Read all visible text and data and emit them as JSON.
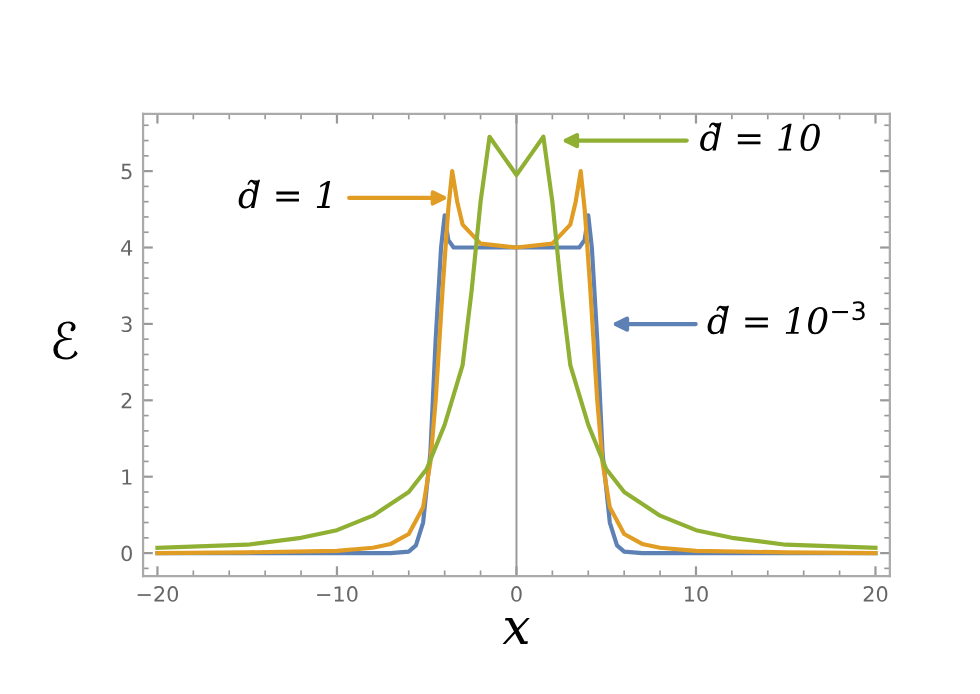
{
  "chart_data": {
    "type": "line",
    "xlabel": "x",
    "ylabel": "ℰ",
    "xlim": [
      -20.8,
      20.8
    ],
    "ylim": [
      -0.3,
      5.75
    ],
    "xticks": [
      {
        "value": -20,
        "label": "−20"
      },
      {
        "value": -10,
        "label": "−10"
      },
      0,
      10,
      20
    ],
    "yticks": [
      0,
      1,
      2,
      3,
      4,
      5
    ],
    "grid": false,
    "marker": "none",
    "line_style": "solid",
    "ref_lines": [
      {
        "axis": "x",
        "value": 0,
        "color": "#999999"
      }
    ],
    "series": [
      {
        "name": "d̃ = 10$^{−3}$",
        "color": "#5e81b5",
        "x": [
          -20,
          -7,
          -6,
          -5.6,
          -5.2,
          -4.8,
          -4.5,
          -4.2,
          -4.0,
          -3.8,
          -3.5,
          0,
          3.5,
          3.8,
          4.0,
          4.2,
          4.5,
          4.8,
          5.2,
          5.6,
          6,
          7,
          20
        ],
        "values": [
          0,
          0,
          0.02,
          0.1,
          0.4,
          1.3,
          2.8,
          4.0,
          4.42,
          4.1,
          4.0,
          4.0,
          4.0,
          4.1,
          4.42,
          4.0,
          2.8,
          1.3,
          0.4,
          0.1,
          0.02,
          0,
          0
        ]
      },
      {
        "name": "d̃ = 1",
        "color": "#e19c24",
        "x": [
          -20,
          -15,
          -10,
          -8,
          -7,
          -6,
          -5.2,
          -4.8,
          -4.5,
          -4.1,
          -3.8,
          -3.58,
          -3.3,
          -3,
          -2,
          0,
          2,
          3,
          3.3,
          3.58,
          3.8,
          4.1,
          4.5,
          4.8,
          5.2,
          6,
          7,
          8,
          10,
          15,
          20
        ],
        "values": [
          0,
          0.01,
          0.03,
          0.07,
          0.12,
          0.25,
          0.6,
          1.18,
          2.0,
          3.5,
          4.5,
          5.0,
          4.6,
          4.3,
          4.05,
          4.0,
          4.05,
          4.3,
          4.6,
          5.0,
          4.5,
          3.5,
          2.0,
          1.18,
          0.6,
          0.25,
          0.12,
          0.07,
          0.03,
          0.01,
          0
        ]
      },
      {
        "name": "d̃ = 10",
        "color": "#8fb032",
        "x": [
          -20,
          -15,
          -12,
          -10,
          -8,
          -6,
          -5,
          -4,
          -3,
          -2.5,
          -2,
          -1.5,
          -0.75,
          0,
          0.75,
          1.5,
          2,
          2.5,
          3,
          4,
          5,
          6,
          8,
          10,
          12,
          15,
          20
        ],
        "values": [
          0.07,
          0.11,
          0.2,
          0.3,
          0.49,
          0.8,
          1.1,
          1.68,
          2.46,
          3.43,
          4.6,
          5.45,
          5.2,
          4.95,
          5.2,
          5.45,
          4.6,
          3.43,
          2.46,
          1.68,
          1.1,
          0.8,
          0.49,
          0.3,
          0.2,
          0.11,
          0.07
        ]
      }
    ]
  }
}
